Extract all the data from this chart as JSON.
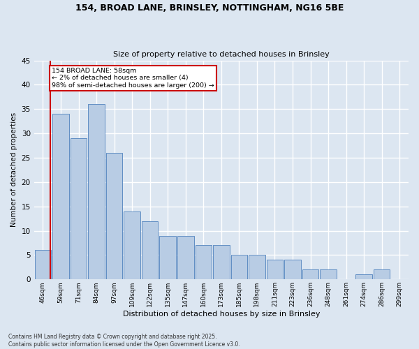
{
  "title1": "154, BROAD LANE, BRINSLEY, NOTTINGHAM, NG16 5BE",
  "title2": "Size of property relative to detached houses in Brinsley",
  "xlabel": "Distribution of detached houses by size in Brinsley",
  "ylabel": "Number of detached properties",
  "categories": [
    "46sqm",
    "59sqm",
    "71sqm",
    "84sqm",
    "97sqm",
    "109sqm",
    "122sqm",
    "135sqm",
    "147sqm",
    "160sqm",
    "173sqm",
    "185sqm",
    "198sqm",
    "211sqm",
    "223sqm",
    "236sqm",
    "248sqm",
    "261sqm",
    "274sqm",
    "286sqm",
    "299sqm"
  ],
  "values": [
    6,
    34,
    29,
    36,
    26,
    14,
    12,
    9,
    9,
    7,
    7,
    5,
    5,
    4,
    4,
    2,
    2,
    0,
    1,
    2,
    0
  ],
  "bar_color": "#b8cce4",
  "bar_edge_color": "#4f81bd",
  "annotation_title": "154 BROAD LANE: 58sqm",
  "annotation_line1": "← 2% of detached houses are smaller (4)",
  "annotation_line2": "98% of semi-detached houses are larger (200) →",
  "ylim": [
    0,
    45
  ],
  "yticks": [
    0,
    5,
    10,
    15,
    20,
    25,
    30,
    35,
    40,
    45
  ],
  "footnote1": "Contains HM Land Registry data © Crown copyright and database right 2025.",
  "footnote2": "Contains public sector information licensed under the Open Government Licence v3.0.",
  "bg_color": "#dce6f1",
  "grid_color": "#ffffff",
  "annotation_box_color": "#ffffff",
  "annotation_box_edge": "#cc0000",
  "red_line_color": "#cc0000"
}
